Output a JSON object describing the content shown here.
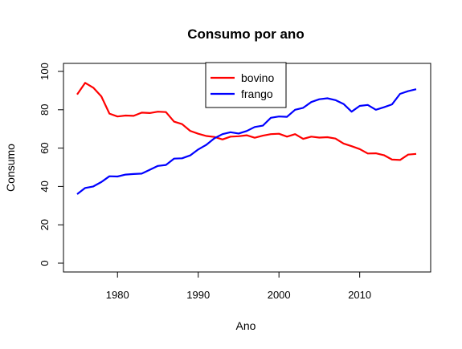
{
  "chart_data": {
    "type": "line",
    "title": "Consumo por ano",
    "xlabel": "Ano",
    "ylabel": "Consumo",
    "xlim": [
      1975,
      2017
    ],
    "ylim": [
      0,
      100
    ],
    "x_ticks": [
      1980,
      1990,
      2000,
      2010
    ],
    "y_ticks": [
      0,
      20,
      40,
      60,
      80,
      100
    ],
    "legend_position": "top-center",
    "grid": false,
    "x": [
      1975,
      1976,
      1977,
      1978,
      1979,
      1980,
      1981,
      1982,
      1983,
      1984,
      1985,
      1986,
      1987,
      1988,
      1989,
      1990,
      1991,
      1992,
      1993,
      1994,
      1995,
      1996,
      1997,
      1998,
      1999,
      2000,
      2001,
      2002,
      2003,
      2004,
      2005,
      2006,
      2007,
      2008,
      2009,
      2010,
      2011,
      2012,
      2013,
      2014,
      2015,
      2016,
      2017
    ],
    "series": [
      {
        "name": "bovino",
        "color": "#ff0000",
        "values": [
          88,
          94,
          91.5,
          87,
          78,
          76.5,
          77,
          76.8,
          78.5,
          78.3,
          79,
          78.8,
          73.8,
          72.5,
          69,
          67.5,
          66.3,
          65.8,
          64.5,
          66,
          66.2,
          66.7,
          65.4,
          66.5,
          67.3,
          67.5,
          66,
          67.3,
          64.8,
          66,
          65.5,
          65.7,
          65,
          62.4,
          61,
          59.5,
          57.2,
          57.3,
          56.3,
          54,
          53.8,
          56.6,
          57
        ]
      },
      {
        "name": "frango",
        "color": "#0000ff",
        "values": [
          36,
          39.2,
          40,
          42.3,
          45.3,
          45.2,
          46.2,
          46.5,
          46.7,
          48.7,
          50.7,
          51.2,
          54.5,
          54.7,
          56.2,
          59.3,
          61.7,
          65.1,
          67.3,
          68.3,
          67.6,
          68.9,
          71,
          71.7,
          75.8,
          76.5,
          76.3,
          80,
          81,
          84,
          85.5,
          86,
          85,
          83,
          79,
          82,
          82.5,
          80,
          81.3,
          82.8,
          88.3,
          89.7,
          90.7
        ]
      }
    ]
  }
}
